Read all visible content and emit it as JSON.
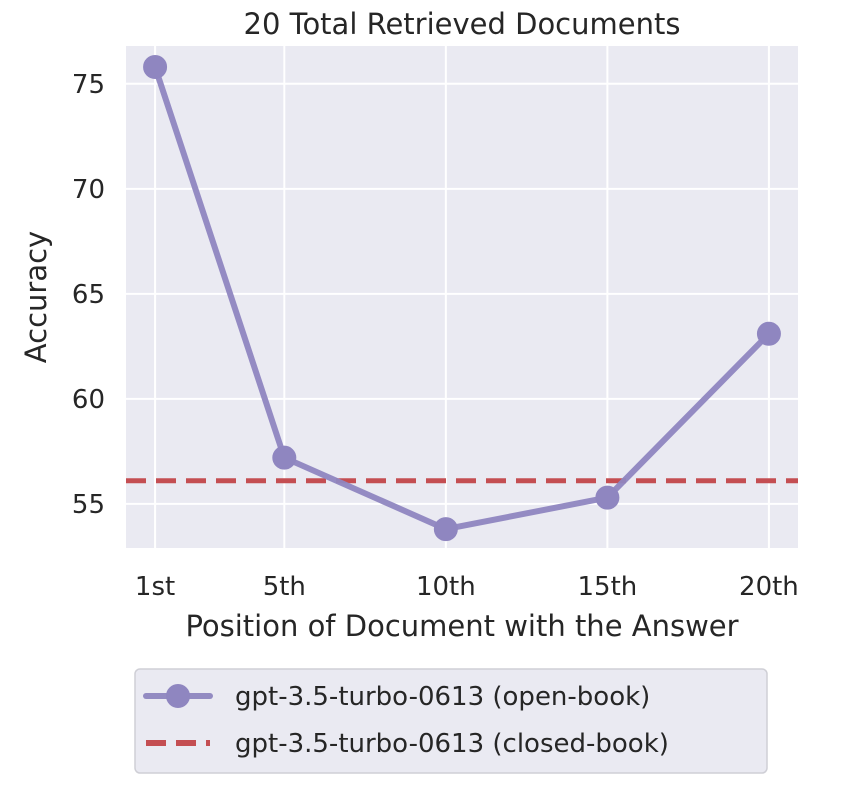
{
  "chart_data": {
    "type": "line",
    "title": "20 Total Retrieved Documents",
    "xlabel": "Position of Document with the Answer",
    "ylabel": "Accuracy",
    "x": [
      1,
      5,
      10,
      15,
      20
    ],
    "xtick_labels": [
      "1st",
      "5th",
      "10th",
      "15th",
      "20th"
    ],
    "yticks": [
      55,
      60,
      65,
      70,
      75
    ],
    "xlim": [
      0.1,
      20.9
    ],
    "ylim": [
      52.9,
      76.8
    ],
    "grid": true,
    "legend_position": "bottom-center",
    "series": [
      {
        "name": "gpt-3.5-turbo-0613 (open-book)",
        "style": "solid-with-markers",
        "color": "#8f86c0",
        "values": [
          75.8,
          57.2,
          53.8,
          55.3,
          63.1
        ]
      },
      {
        "name": "gpt-3.5-turbo-0613 (closed-book)",
        "style": "dashed-horizontal",
        "color": "#c44e52",
        "value": 56.1
      }
    ],
    "plot_background": "#eaeaf2",
    "grid_color": "#ffffff"
  }
}
